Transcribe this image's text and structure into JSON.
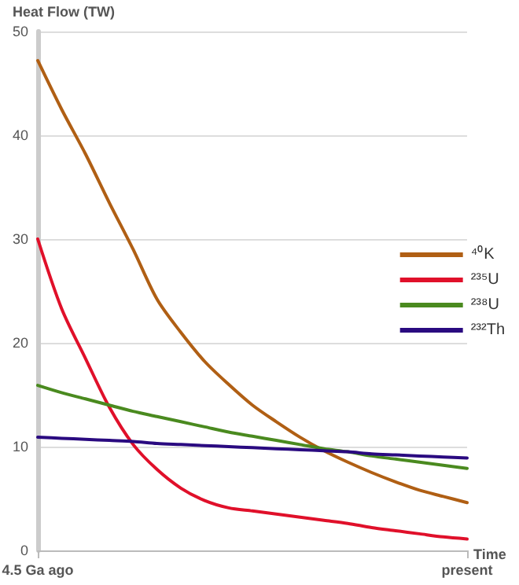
{
  "chart_data": {
    "type": "line",
    "ylabel": "Heat Flow (TW)",
    "xlabel": "Time",
    "categories": [
      "4.5 Ga ago",
      null,
      null,
      null,
      null,
      null,
      null,
      null,
      null,
      null,
      null,
      null,
      null,
      null,
      null,
      null,
      null,
      null,
      "present"
    ],
    "ylim": [
      0,
      50
    ],
    "yticks": [
      0,
      10,
      20,
      30,
      40,
      50
    ],
    "grid": "y",
    "legend": "right",
    "marker": "none",
    "line_style": "solid",
    "series": [
      {
        "name": "⁴⁰K",
        "color": "#b05f14",
        "values": [
          47.2,
          42.5,
          38.2,
          33.5,
          29.0,
          24.2,
          21.0,
          18.2,
          16.0,
          14.0,
          12.4,
          10.9,
          9.6,
          8.5,
          7.5,
          6.6,
          5.8,
          5.2,
          4.6
        ]
      },
      {
        "name": "²³⁵U",
        "color": "#e0102a",
        "values": [
          30,
          23.3,
          18.5,
          13.8,
          10.2,
          7.8,
          6.0,
          4.8,
          4.1,
          3.8,
          3.5,
          3.2,
          2.9,
          2.6,
          2.2,
          1.9,
          1.6,
          1.3,
          1.1
        ]
      },
      {
        "name": "²³⁸U",
        "color": "#4a8a1f",
        "values": [
          15.9,
          15.2,
          14.6,
          14.0,
          13.4,
          12.9,
          12.4,
          11.9,
          11.4,
          11.0,
          10.6,
          10.2,
          9.8,
          9.5,
          9.1,
          8.8,
          8.5,
          8.2,
          7.9
        ]
      },
      {
        "name": "²³²Th",
        "color": "#2a0a80",
        "values": [
          10.9,
          10.8,
          10.7,
          10.6,
          10.5,
          10.3,
          10.2,
          10.1,
          10.0,
          9.9,
          9.8,
          9.7,
          9.6,
          9.5,
          9.3,
          9.2,
          9.1,
          9.0,
          8.9
        ]
      }
    ]
  }
}
